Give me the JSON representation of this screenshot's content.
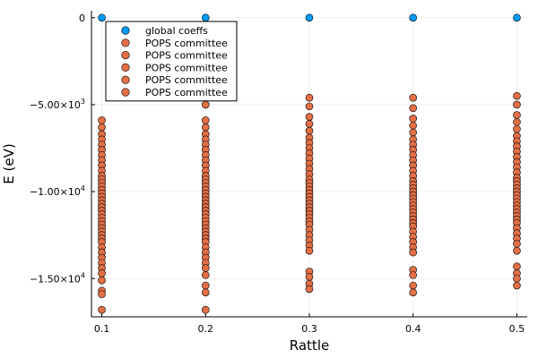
{
  "chart_data": {
    "type": "scatter",
    "xlabel": "Rattle",
    "ylabel": "E (eV)",
    "xlim": [
      0.09,
      0.51
    ],
    "ylim": [
      -17200,
      400
    ],
    "grid": true,
    "legend_position": "top-left",
    "x_ticks": [
      {
        "value": 0.1,
        "label": "0.1"
      },
      {
        "value": 0.2,
        "label": "0.2"
      },
      {
        "value": 0.3,
        "label": "0.3"
      },
      {
        "value": 0.4,
        "label": "0.4"
      },
      {
        "value": 0.5,
        "label": "0.5"
      }
    ],
    "y_ticks": [
      {
        "value": 0,
        "base": "0",
        "exp": ""
      },
      {
        "value": -5000,
        "base": "−5.00×10",
        "exp": "3"
      },
      {
        "value": -10000,
        "base": "−1.00×10",
        "exp": "4"
      },
      {
        "value": -15000,
        "base": "−1.50×10",
        "exp": "4"
      }
    ],
    "colors": {
      "global": "#009af9",
      "pops": "#e26f46"
    },
    "legend": [
      {
        "label": "global coeffs",
        "color": "#009af9"
      },
      {
        "label": "POPS committee",
        "color": "#e26f46"
      },
      {
        "label": "POPS committee",
        "color": "#e26f46"
      },
      {
        "label": "POPS committee",
        "color": "#e26f46"
      },
      {
        "label": "POPS committee",
        "color": "#e26f46"
      },
      {
        "label": "POPS committee",
        "color": "#e26f46"
      }
    ],
    "series": [
      {
        "name": "global coeffs",
        "color": "#009af9",
        "x": [
          0.1,
          0.2,
          0.3,
          0.4,
          0.5
        ],
        "y": [
          0,
          0,
          0,
          0,
          0
        ]
      },
      {
        "name": "POPS committee",
        "color": "#e26f46",
        "x": [
          0.1,
          0.1,
          0.1,
          0.1,
          0.1,
          0.1,
          0.1,
          0.1,
          0.1,
          0.1,
          0.1,
          0.1,
          0.1,
          0.1,
          0.1,
          0.1,
          0.1,
          0.1,
          0.1,
          0.1,
          0.1,
          0.1,
          0.1,
          0.1,
          0.1,
          0.1,
          0.1,
          0.1,
          0.1,
          0.1,
          0.1,
          0.1,
          0.1,
          0.1,
          0.1,
          0.1,
          0.1,
          0.1,
          0.1,
          0.1
        ],
        "y": [
          -5900,
          -6300,
          -6700,
          -7000,
          -7300,
          -7600,
          -7900,
          -8200,
          -8500,
          -8800,
          -9100,
          -9300,
          -9500,
          -9700,
          -9900,
          -10100,
          -10300,
          -10500,
          -10700,
          -10900,
          -11100,
          -11300,
          -11500,
          -11700,
          -11900,
          -12100,
          -12300,
          -12500,
          -12700,
          -12900,
          -13200,
          -13500,
          -13800,
          -14100,
          -14400,
          -14700,
          -15100,
          -15700,
          -15900,
          -16800
        ]
      },
      {
        "name": "POPS committee",
        "color": "#e26f46",
        "x": [
          0.2,
          0.2,
          0.2,
          0.2,
          0.2,
          0.2,
          0.2,
          0.2,
          0.2,
          0.2,
          0.2,
          0.2,
          0.2,
          0.2,
          0.2,
          0.2,
          0.2,
          0.2,
          0.2,
          0.2,
          0.2,
          0.2,
          0.2,
          0.2,
          0.2,
          0.2,
          0.2,
          0.2,
          0.2,
          0.2,
          0.2,
          0.2,
          0.2,
          0.2,
          0.2,
          0.2,
          0.2,
          0.2,
          0.2,
          0.2
        ],
        "y": [
          -5000,
          -5900,
          -6300,
          -6700,
          -7000,
          -7300,
          -7600,
          -7900,
          -8200,
          -8500,
          -8800,
          -9100,
          -9300,
          -9500,
          -9700,
          -9900,
          -10100,
          -10300,
          -10500,
          -10700,
          -10900,
          -11100,
          -11300,
          -11500,
          -11700,
          -11900,
          -12100,
          -12300,
          -12500,
          -12700,
          -12900,
          -13200,
          -13500,
          -13800,
          -14100,
          -14400,
          -14800,
          -15400,
          -15800,
          -16800
        ]
      },
      {
        "name": "POPS committee",
        "color": "#e26f46",
        "x": [
          0.3,
          0.3,
          0.3,
          0.3,
          0.3,
          0.3,
          0.3,
          0.3,
          0.3,
          0.3,
          0.3,
          0.3,
          0.3,
          0.3,
          0.3,
          0.3,
          0.3,
          0.3,
          0.3,
          0.3,
          0.3,
          0.3,
          0.3,
          0.3,
          0.3,
          0.3,
          0.3,
          0.3,
          0.3,
          0.3,
          0.3,
          0.3,
          0.3,
          0.3,
          0.3,
          0.3
        ],
        "y": [
          -4600,
          -5100,
          -5700,
          -6100,
          -6500,
          -6900,
          -7200,
          -7500,
          -7800,
          -8100,
          -8400,
          -8700,
          -9000,
          -9300,
          -9500,
          -9700,
          -9900,
          -10100,
          -10300,
          -10500,
          -10700,
          -10900,
          -11100,
          -11300,
          -11500,
          -11700,
          -11900,
          -12200,
          -12500,
          -12800,
          -13100,
          -13400,
          -14600,
          -14900,
          -15300,
          -15600
        ]
      },
      {
        "name": "POPS committee",
        "color": "#e26f46",
        "x": [
          0.4,
          0.4,
          0.4,
          0.4,
          0.4,
          0.4,
          0.4,
          0.4,
          0.4,
          0.4,
          0.4,
          0.4,
          0.4,
          0.4,
          0.4,
          0.4,
          0.4,
          0.4,
          0.4,
          0.4,
          0.4,
          0.4,
          0.4,
          0.4,
          0.4,
          0.4,
          0.4,
          0.4,
          0.4,
          0.4,
          0.4,
          0.4,
          0.4,
          0.4,
          0.4,
          0.4
        ],
        "y": [
          -4600,
          -5200,
          -5800,
          -6200,
          -6600,
          -7000,
          -7300,
          -7600,
          -7900,
          -8200,
          -8500,
          -8800,
          -9100,
          -9400,
          -9600,
          -9800,
          -10000,
          -10200,
          -10400,
          -10600,
          -10800,
          -11000,
          -11200,
          -11400,
          -11600,
          -11800,
          -12000,
          -12300,
          -12600,
          -12900,
          -13200,
          -13500,
          -14500,
          -14800,
          -15400,
          -15800
        ]
      },
      {
        "name": "POPS committee",
        "color": "#e26f46",
        "x": [
          0.5,
          0.5,
          0.5,
          0.5,
          0.5,
          0.5,
          0.5,
          0.5,
          0.5,
          0.5,
          0.5,
          0.5,
          0.5,
          0.5,
          0.5,
          0.5,
          0.5,
          0.5,
          0.5,
          0.5,
          0.5,
          0.5,
          0.5,
          0.5,
          0.5,
          0.5,
          0.5,
          0.5,
          0.5,
          0.5,
          0.5,
          0.5,
          0.5,
          0.5,
          0.5,
          0.5
        ],
        "y": [
          -4500,
          -5000,
          -5600,
          -6000,
          -6400,
          -6800,
          -7100,
          -7400,
          -7700,
          -8000,
          -8300,
          -8600,
          -8900,
          -9200,
          -9400,
          -9600,
          -9800,
          -10000,
          -10200,
          -10400,
          -10600,
          -10800,
          -11000,
          -11200,
          -11400,
          -11600,
          -11800,
          -12100,
          -12400,
          -12700,
          -13000,
          -13400,
          -14300,
          -14700,
          -15000,
          -15400
        ]
      }
    ]
  }
}
